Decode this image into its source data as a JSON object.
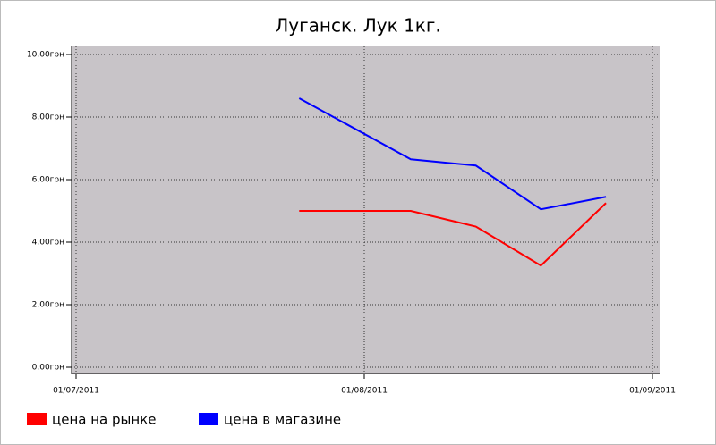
{
  "chart_data": {
    "type": "line",
    "title": "Луганск. Лук 1кг.",
    "x": [
      "2011-07-25",
      "2011-08-06",
      "2011-08-13",
      "2011-08-20",
      "2011-08-27"
    ],
    "series": [
      {
        "name": "цена на рынке",
        "color": "#ff0000",
        "values": [
          5.0,
          5.0,
          4.5,
          3.25,
          5.25
        ]
      },
      {
        "name": "цена в магазине",
        "color": "#0000ff",
        "values": [
          8.6,
          6.65,
          6.45,
          5.05,
          5.45
        ]
      }
    ],
    "xlim": [
      "2011-07-01",
      "2011-09-01"
    ],
    "xticks": [
      {
        "value": "2011-07-01",
        "label": "01/07/2011"
      },
      {
        "value": "2011-08-01",
        "label": "01/08/2011"
      },
      {
        "value": "2011-09-01",
        "label": "01/09/2011"
      }
    ],
    "ylim": [
      0,
      10
    ],
    "yticks": [
      {
        "value": 0,
        "label": "0.00грн"
      },
      {
        "value": 2,
        "label": "2.00грн"
      },
      {
        "value": 4,
        "label": "4.00грн"
      },
      {
        "value": 6,
        "label": "6.00грн"
      },
      {
        "value": 8,
        "label": "8.00грн"
      },
      {
        "value": 10,
        "label": "10.00грн"
      }
    ],
    "grid": true,
    "legend": "bottom"
  }
}
